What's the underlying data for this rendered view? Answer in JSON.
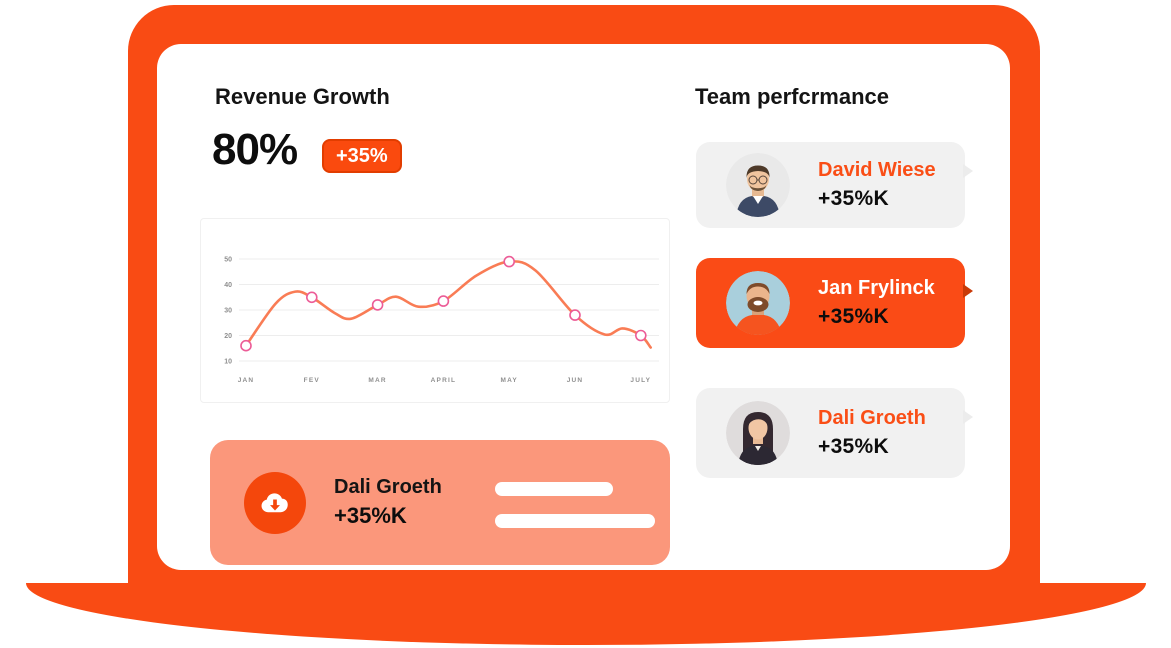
{
  "revenue": {
    "title": "Revenue Growth",
    "value": "80%",
    "badge": "+35%"
  },
  "chart_data": {
    "type": "line",
    "title": "",
    "xlabel": "",
    "ylabel": "",
    "categories": [
      "JAN",
      "FEV",
      "MAR",
      "APRIL",
      "MAY",
      "JUN",
      "JULY"
    ],
    "values": [
      16,
      35,
      32,
      33.5,
      49,
      28,
      20
    ],
    "curve": [
      [
        0,
        16
      ],
      [
        0.45,
        32.5
      ],
      [
        0.75,
        37.2
      ],
      [
        1,
        35
      ],
      [
        1.35,
        28.8
      ],
      [
        1.6,
        26.6
      ],
      [
        2,
        32
      ],
      [
        2.28,
        35.2
      ],
      [
        2.62,
        31.3
      ],
      [
        3,
        33.5
      ],
      [
        3.5,
        43.5
      ],
      [
        4,
        49
      ],
      [
        4.4,
        45.5
      ],
      [
        5,
        28
      ],
      [
        5.45,
        20.4
      ],
      [
        5.72,
        22.8
      ],
      [
        6,
        20
      ],
      [
        6.15,
        15.3
      ]
    ],
    "ylim": [
      10,
      50
    ],
    "yticks": [
      10,
      20,
      30,
      40,
      50
    ],
    "grid": "horizontal",
    "legend": "none",
    "line_color": "#F97C55",
    "marker_color": "#EC5C97"
  },
  "download_card": {
    "name": "Dali Groeth",
    "value": "+35%K",
    "icon": "cloud-download-icon"
  },
  "team": {
    "title": "Team perfcrmance",
    "members": [
      {
        "name": "David Wiese",
        "value": "+35%K",
        "highlighted": false
      },
      {
        "name": "Jan Frylinck",
        "value": "+35%K",
        "highlighted": true
      },
      {
        "name": "Dali Groeth",
        "value": "+35%K",
        "highlighted": false
      }
    ]
  },
  "colors": {
    "primary": "#F94B14",
    "badge": "#FA4A0E",
    "badge_border": "#E23D00",
    "salmon": "#FB977B",
    "card_gray": "#F1F1F1",
    "name_orange": "#FA4E16",
    "chart_line": "#F97C55",
    "chart_marker": "#EC5C97"
  }
}
